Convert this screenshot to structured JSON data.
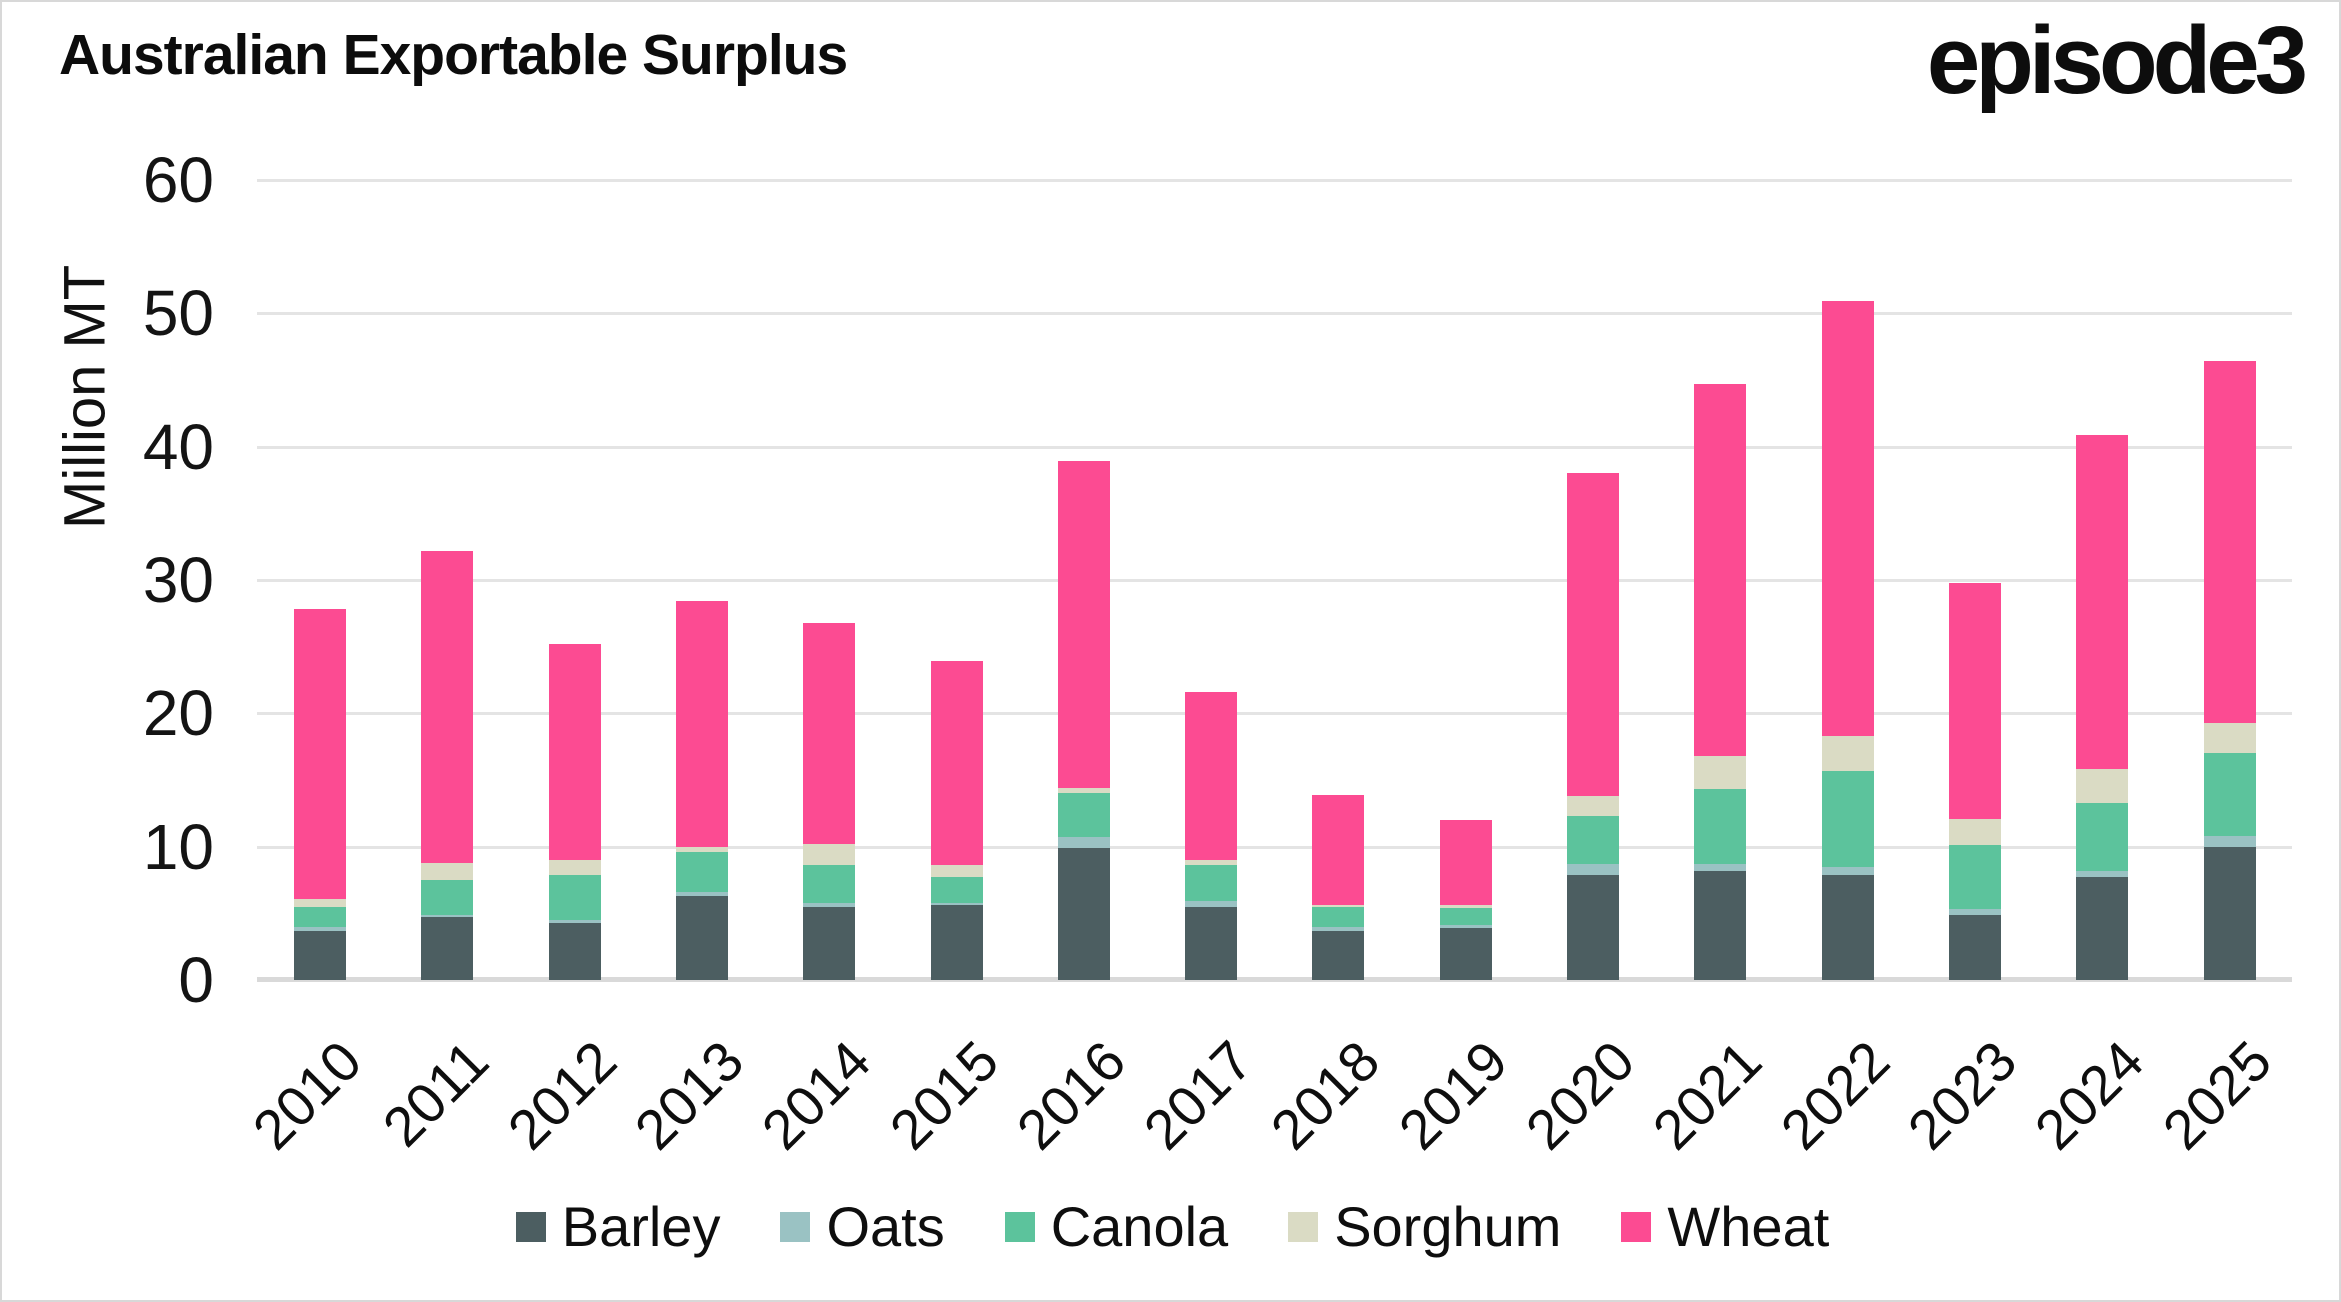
{
  "page": {
    "title": "Australian Exportable Surplus",
    "brand_logo": "episode3"
  },
  "chart_data": {
    "type": "bar",
    "stacked": true,
    "title": "Australian Exportable Surplus",
    "ylabel": "Million MT",
    "xlabel": "",
    "ylim": [
      0,
      60
    ],
    "yticks": [
      0,
      10,
      20,
      30,
      40,
      50,
      60
    ],
    "grid": true,
    "legend_position": "bottom",
    "categories": [
      "2010",
      "2011",
      "2012",
      "2013",
      "2014",
      "2015",
      "2016",
      "2017",
      "2018",
      "2019",
      "2020",
      "2021",
      "2022",
      "2023",
      "2024",
      "2025"
    ],
    "series": [
      {
        "name": "Barley",
        "color": "#4c5e61",
        "values": [
          3.7,
          4.7,
          4.3,
          6.3,
          5.5,
          5.6,
          9.9,
          5.5,
          3.7,
          3.9,
          7.9,
          8.2,
          7.9,
          4.9,
          7.7,
          10.0
        ]
      },
      {
        "name": "Oats",
        "color": "#9ac2c3",
        "values": [
          0.3,
          0.2,
          0.2,
          0.3,
          0.3,
          0.2,
          0.8,
          0.4,
          0.3,
          0.2,
          0.8,
          0.5,
          0.6,
          0.4,
          0.5,
          0.8
        ]
      },
      {
        "name": "Canola",
        "color": "#5cc39c",
        "values": [
          1.5,
          2.6,
          3.4,
          3.0,
          2.8,
          1.9,
          3.3,
          2.7,
          1.5,
          1.3,
          3.6,
          5.6,
          7.2,
          4.8,
          5.1,
          6.2
        ]
      },
      {
        "name": "Sorghum",
        "color": "#dadbc4",
        "values": [
          0.6,
          1.3,
          1.1,
          0.4,
          1.6,
          0.9,
          0.4,
          0.4,
          0.1,
          0.2,
          1.5,
          2.5,
          2.6,
          2.0,
          2.5,
          2.3
        ]
      },
      {
        "name": "Wheat",
        "color": "#fc4b92",
        "values": [
          21.7,
          23.4,
          16.2,
          18.4,
          16.6,
          15.3,
          24.5,
          12.6,
          8.3,
          6.4,
          24.2,
          27.9,
          32.6,
          17.7,
          25.1,
          27.1
        ]
      }
    ],
    "totals": [
      27.8,
      32.2,
      25.2,
      28.4,
      26.8,
      23.9,
      38.9,
      21.6,
      13.9,
      12.0,
      38.0,
      44.7,
      50.9,
      29.8,
      40.9,
      46.4
    ]
  }
}
